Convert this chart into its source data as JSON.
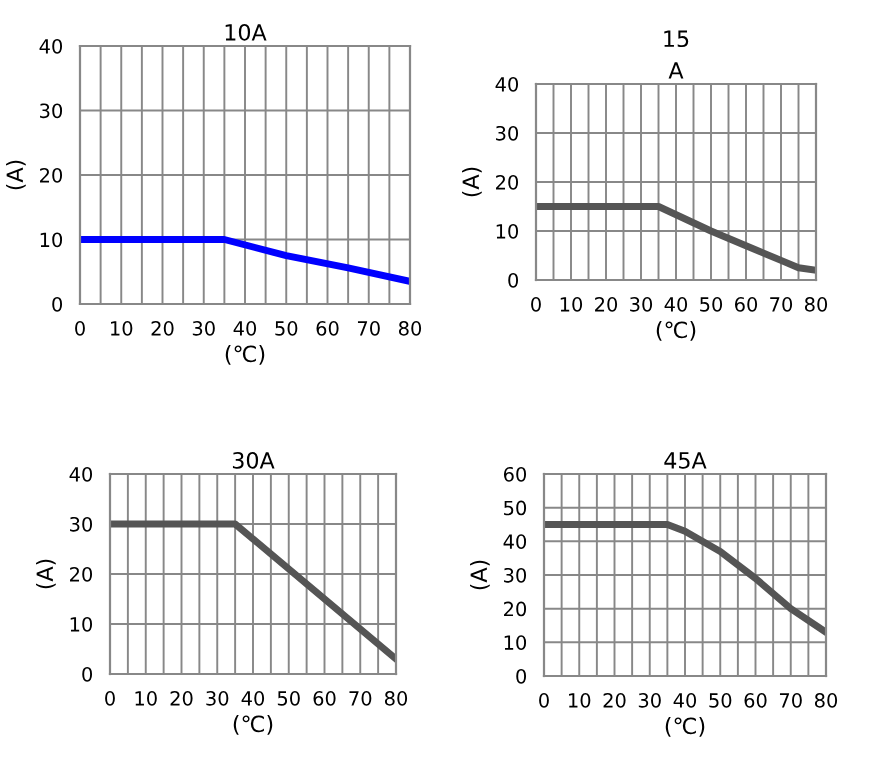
{
  "chart_data": [
    {
      "type": "line",
      "title": "10A",
      "xlabel": "(℃)",
      "ylabel": "(A)",
      "x": [
        0,
        35,
        50,
        65,
        80
      ],
      "series": [
        {
          "color": "#0000ff",
          "values": [
            10,
            10,
            7.5,
            5.6,
            3.5
          ]
        }
      ],
      "xlim": [
        0,
        80
      ],
      "ylim": [
        0,
        40
      ],
      "xticks": [
        0,
        {
          "value": 5,
          "label": null
        },
        10,
        {
          "value": 15,
          "label": null
        },
        20,
        {
          "value": 25,
          "label": null
        },
        30,
        {
          "value": 35,
          "label": null
        },
        40,
        {
          "value": 45,
          "label": null
        },
        50,
        {
          "value": 55,
          "label": null
        },
        60,
        {
          "value": 65,
          "label": null
        },
        70,
        {
          "value": 75,
          "label": null
        },
        80
      ],
      "yticks": [
        0,
        10,
        20,
        30,
        40
      ],
      "grid": true,
      "line_style": "solid",
      "marker": "none"
    },
    {
      "type": "line",
      "title": "15\nA",
      "xlabel": "(℃)",
      "ylabel": "(A)",
      "x": [
        0,
        35,
        50,
        60,
        70,
        75,
        80
      ],
      "series": [
        {
          "color": "#555555",
          "values": [
            15,
            15,
            10,
            7,
            4,
            2.5,
            2
          ]
        }
      ],
      "xlim": [
        0,
        80
      ],
      "ylim": [
        0,
        40
      ],
      "xticks": [
        0,
        {
          "value": 5,
          "label": null
        },
        10,
        {
          "value": 15,
          "label": null
        },
        20,
        {
          "value": 25,
          "label": null
        },
        30,
        {
          "value": 35,
          "label": null
        },
        40,
        {
          "value": 45,
          "label": null
        },
        50,
        {
          "value": 55,
          "label": null
        },
        60,
        {
          "value": 65,
          "label": null
        },
        70,
        {
          "value": 75,
          "label": null
        },
        80
      ],
      "yticks": [
        0,
        10,
        20,
        30,
        40
      ],
      "grid": true,
      "line_style": "solid",
      "marker": "none"
    },
    {
      "type": "line",
      "title": "30A",
      "xlabel": "(℃)",
      "ylabel": "(A)",
      "x": [
        0,
        35,
        80
      ],
      "series": [
        {
          "color": "#555555",
          "values": [
            30,
            30,
            3
          ]
        }
      ],
      "xlim": [
        0,
        80
      ],
      "ylim": [
        0,
        40
      ],
      "xticks": [
        0,
        {
          "value": 5,
          "label": null
        },
        10,
        {
          "value": 15,
          "label": null
        },
        20,
        {
          "value": 25,
          "label": null
        },
        30,
        {
          "value": 35,
          "label": null
        },
        40,
        {
          "value": 45,
          "label": null
        },
        50,
        {
          "value": 55,
          "label": null
        },
        60,
        {
          "value": 65,
          "label": null
        },
        70,
        {
          "value": 75,
          "label": null
        },
        80
      ],
      "yticks": [
        0,
        10,
        20,
        30,
        40
      ],
      "grid": true,
      "line_style": "solid",
      "marker": "none"
    },
    {
      "type": "line",
      "title": "45A",
      "xlabel": "(℃)",
      "ylabel": "(A)",
      "x": [
        0,
        35,
        40,
        50,
        60,
        70,
        80
      ],
      "series": [
        {
          "color": "#555555",
          "values": [
            45,
            45,
            43,
            37,
            29,
            20,
            13
          ]
        }
      ],
      "xlim": [
        0,
        80
      ],
      "ylim": [
        0,
        60
      ],
      "xticks": [
        0,
        {
          "value": 5,
          "label": null
        },
        10,
        {
          "value": 15,
          "label": null
        },
        20,
        {
          "value": 25,
          "label": null
        },
        30,
        {
          "value": 35,
          "label": null
        },
        40,
        {
          "value": 45,
          "label": null
        },
        50,
        {
          "value": 55,
          "label": null
        },
        60,
        {
          "value": 65,
          "label": null
        },
        70,
        {
          "value": 75,
          "label": null
        },
        80
      ],
      "yticks": [
        0,
        10,
        20,
        30,
        40,
        50,
        60
      ],
      "grid": true,
      "line_style": "solid",
      "marker": "none"
    }
  ]
}
